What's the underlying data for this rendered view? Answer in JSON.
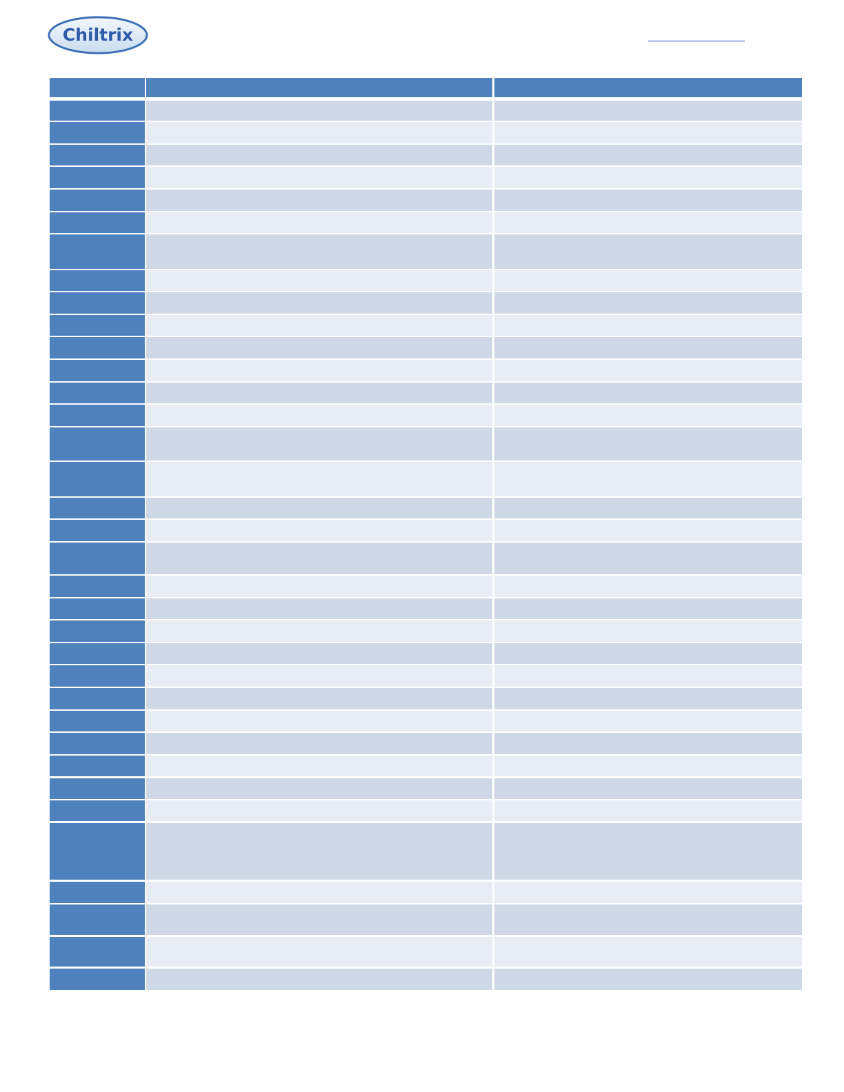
{
  "header": {
    "logo": "Chiltrix"
  }
}
